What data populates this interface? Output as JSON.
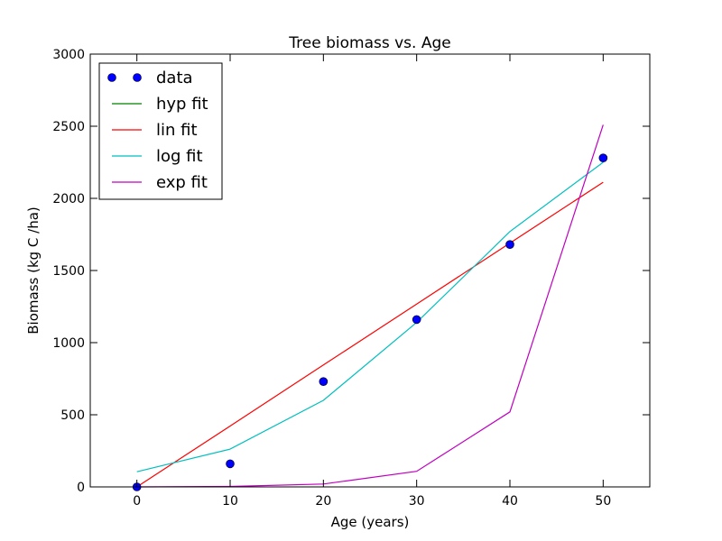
{
  "chart_data": {
    "type": "line",
    "title": "Tree biomass vs. Age",
    "xlabel": "Age (years)",
    "ylabel": "Biomass (kg C /ha)",
    "xlim": [
      -5,
      55
    ],
    "ylim": [
      0,
      3000
    ],
    "xticks": [
      0,
      10,
      20,
      30,
      40,
      50
    ],
    "yticks": [
      0,
      500,
      1000,
      1500,
      2000,
      2500,
      3000
    ],
    "grid": false,
    "legend_position": "top-left",
    "x": [
      0,
      10,
      20,
      30,
      40,
      50
    ],
    "series": [
      {
        "name": "data",
        "style": "markers",
        "color": "#0000ff",
        "values": [
          0,
          160,
          730,
          1160,
          1680,
          2280
        ]
      },
      {
        "name": "hyp fit",
        "style": "line",
        "color": "#008000",
        "values": [
          null,
          null,
          null,
          null,
          null,
          null
        ]
      },
      {
        "name": "lin fit",
        "style": "line",
        "color": "#ff0000",
        "values": [
          0,
          422,
          845,
          1267,
          1690,
          2112
        ]
      },
      {
        "name": "log fit",
        "style": "line",
        "color": "#00bfbf",
        "values": [
          105,
          262,
          600,
          1140,
          1770,
          2250
        ]
      },
      {
        "name": "exp fit",
        "style": "line",
        "color": "#bf00bf",
        "values": [
          0,
          3,
          20,
          108,
          520,
          2510
        ]
      }
    ]
  }
}
